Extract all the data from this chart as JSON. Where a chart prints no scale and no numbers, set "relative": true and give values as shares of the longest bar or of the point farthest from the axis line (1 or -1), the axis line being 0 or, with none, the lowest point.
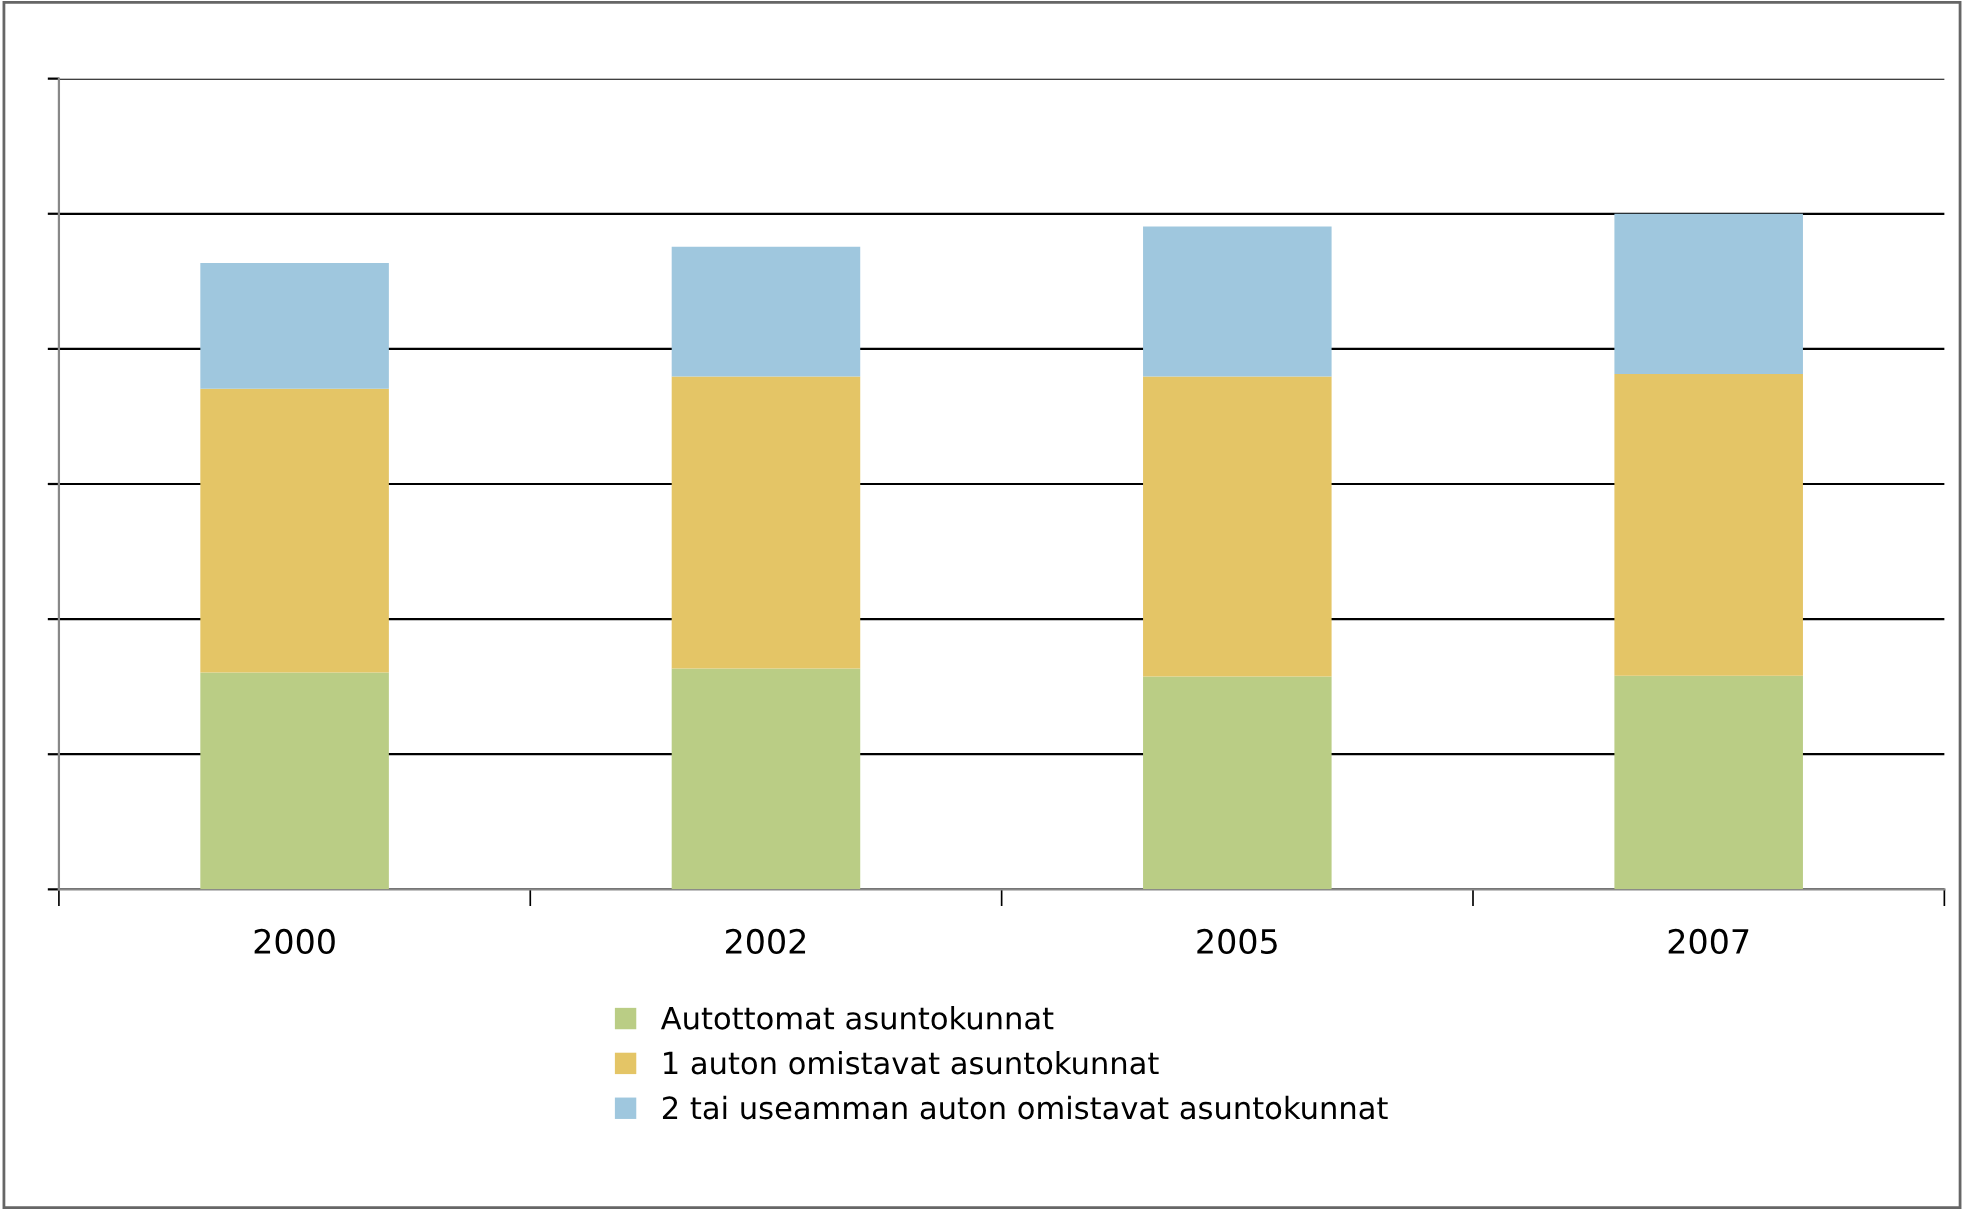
{
  "chart_data": {
    "type": "bar",
    "stacked": true,
    "relative": true,
    "categories": [
      "2000",
      "2002",
      "2005",
      "2007"
    ],
    "series": [
      {
        "name": "Autottomat asuntokunnat",
        "color": "#bacd85",
        "values": [
          0.321,
          0.327,
          0.315,
          0.316
        ]
      },
      {
        "name": "1 auton omistavat asuntokunnat",
        "color": "#e4c566",
        "values": [
          0.42,
          0.432,
          0.444,
          0.447
        ]
      },
      {
        "name": "2 tai useamman auton omistavat asuntokunnat",
        "color": "#9fc7de",
        "values": [
          0.186,
          0.192,
          0.222,
          0.237
        ]
      }
    ],
    "grid": "y",
    "legend": "bottom",
    "tick_labels": "x"
  }
}
